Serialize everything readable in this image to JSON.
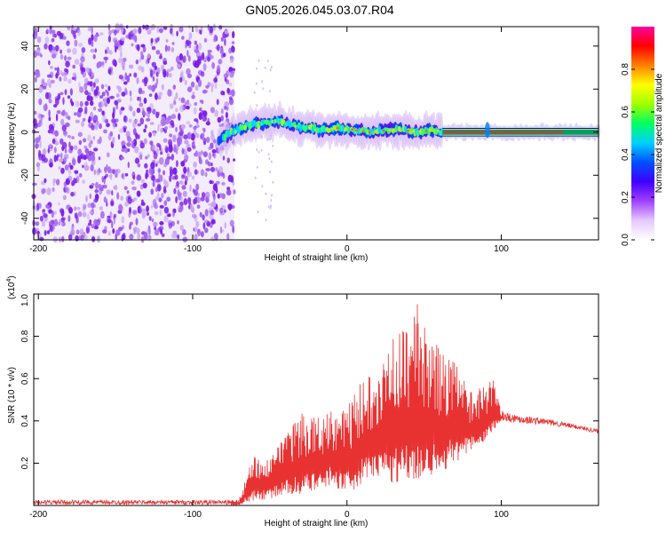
{
  "title": "GN05.2026.045.03.07.R04",
  "colors": {
    "snr_line": "#e83232",
    "noise_purple": "#7a1fe8",
    "noise_light": "#c9a8f0",
    "axis": "#000000"
  },
  "chart_data": [
    {
      "type": "heatmap",
      "name": "spectrogram",
      "xlabel": "Height of straight line (km)",
      "ylabel": "Frequency (Hz)",
      "xlim": [
        -203,
        163
      ],
      "ylim": [
        -50,
        49
      ],
      "xticks": [
        -200,
        -100,
        0,
        100
      ],
      "xtick_labels": [
        "-200",
        "-100",
        "0",
        "100"
      ],
      "yticks": [
        40,
        20,
        0,
        -20,
        -40
      ],
      "ytick_labels": [
        "40",
        "20",
        "0",
        "-20",
        "-40"
      ],
      "noise_region_x": [
        -203,
        -73
      ],
      "signal_track": {
        "x": [
          -83,
          -75,
          -65,
          -55,
          -45,
          -35,
          -25,
          -15,
          -5,
          5,
          15,
          25,
          35,
          45,
          55,
          62,
          75,
          90,
          100,
          120,
          140,
          163
        ],
        "y": [
          -4,
          0,
          3,
          4,
          5,
          3,
          2,
          1,
          2,
          1,
          0,
          1,
          1,
          0,
          1,
          0,
          0,
          0,
          0,
          0,
          0,
          0
        ]
      },
      "colorbar": {
        "label": "Normalized spectral amplitude",
        "range": [
          0,
          1
        ],
        "ticks": [
          0.0,
          0.2,
          0.4,
          0.6,
          0.8
        ],
        "tick_labels": [
          "0.0",
          "0.2",
          "0.4",
          "0.6",
          "0.8"
        ],
        "colormap": [
          "#ffffff",
          "#e6c8ff",
          "#a040ff",
          "#4000ff",
          "#0050ff",
          "#00d0ff",
          "#00ff60",
          "#a0ff00",
          "#ffff00",
          "#ff8000",
          "#ff0000",
          "#ff00a0"
        ]
      }
    },
    {
      "type": "line",
      "name": "snr",
      "xlabel": "Height of straight line (km)",
      "ylabel": "SNR (10 * v/v)",
      "yscale_label": "(x10",
      "yscale_exp": "4",
      "scale_close": ")",
      "xlim": [
        -203,
        163
      ],
      "ylim": [
        0,
        1.0
      ],
      "xticks": [
        -200,
        -100,
        0,
        100
      ],
      "xtick_labels": [
        "-200",
        "-100",
        "0",
        "100"
      ],
      "yticks": [
        0.2,
        0.4,
        0.6,
        0.8,
        1.0
      ],
      "ytick_labels": [
        "0.2",
        "0.4",
        "0.6",
        "0.8",
        "1.0"
      ],
      "envelope": {
        "x": [
          -203,
          -80,
          -70,
          -60,
          -50,
          -40,
          -30,
          -20,
          -10,
          0,
          10,
          20,
          30,
          40,
          45,
          50,
          60,
          70,
          80,
          90,
          95,
          100,
          110,
          130,
          150,
          163
        ],
        "max": [
          0.02,
          0.02,
          0.03,
          0.25,
          0.22,
          0.33,
          0.45,
          0.42,
          0.46,
          0.48,
          0.6,
          0.7,
          0.8,
          0.87,
          1.0,
          0.85,
          0.75,
          0.68,
          0.55,
          0.58,
          0.6,
          0.45,
          0.43,
          0.41,
          0.38,
          0.36
        ],
        "min": [
          0.0,
          0.0,
          0.0,
          0.02,
          0.03,
          0.05,
          0.05,
          0.06,
          0.1,
          0.05,
          0.1,
          0.12,
          0.1,
          0.12,
          0.1,
          0.12,
          0.15,
          0.2,
          0.25,
          0.3,
          0.35,
          0.4,
          0.39,
          0.38,
          0.36,
          0.34
        ]
      }
    }
  ]
}
